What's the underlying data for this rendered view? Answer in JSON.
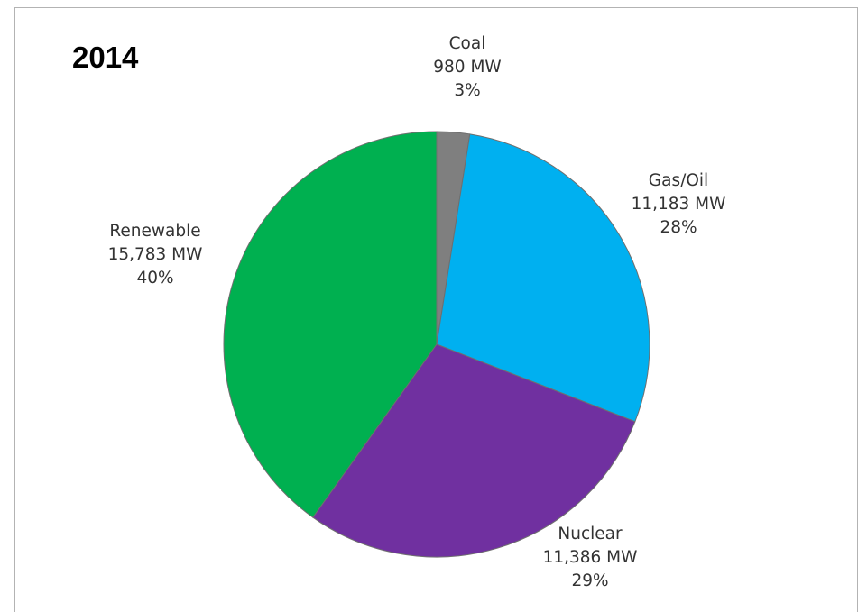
{
  "chart_data": {
    "type": "pie",
    "title": "2014",
    "unit": "MW",
    "slices": [
      {
        "label": "Coal",
        "value": 980,
        "value_text": "980 MW",
        "percent_text": "3%",
        "color": "#7f7f7f"
      },
      {
        "label": "Gas/Oil",
        "value": 11183,
        "value_text": "11,183 MW",
        "percent_text": "28%",
        "color": "#00b0f0"
      },
      {
        "label": "Nuclear",
        "value": 11386,
        "value_text": "11,386 MW",
        "percent_text": "29%",
        "color": "#7030a0"
      },
      {
        "label": "Renewable",
        "value": 15783,
        "value_text": "15,783 MW",
        "percent_text": "40%",
        "color": "#00b050"
      }
    ],
    "start_angle": "12 o'clock",
    "direction": "clockwise",
    "legend": "none",
    "data_labels": "outside"
  }
}
